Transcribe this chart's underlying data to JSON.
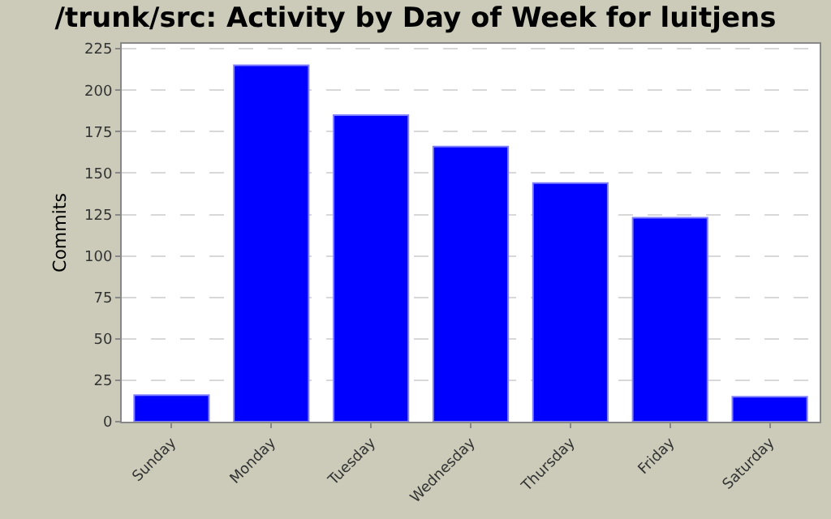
{
  "chart_data": {
    "type": "bar",
    "title": "/trunk/src: Activity by Day of Week for luitjens",
    "ylabel": "Commits",
    "categories": [
      "Sunday",
      "Monday",
      "Tuesday",
      "Wednesday",
      "Thursday",
      "Friday",
      "Saturday"
    ],
    "values": [
      16,
      215,
      185,
      166,
      144,
      123,
      15
    ],
    "color": "#0000ff",
    "ylim": [
      0,
      228
    ],
    "yticks": [
      0,
      25,
      50,
      75,
      100,
      125,
      150,
      175,
      200,
      225
    ],
    "grid": "y",
    "legend": false
  }
}
